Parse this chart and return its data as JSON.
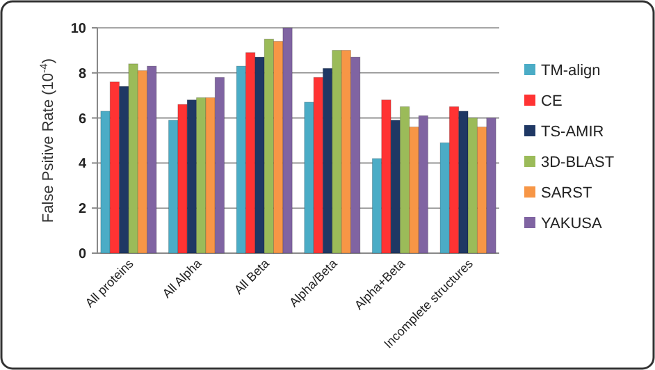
{
  "chart_data": {
    "type": "bar",
    "ylabel": "False Psitive Rate (10$^{-4}$)",
    "categories": [
      "All proteins",
      "All Alpha",
      "All Beta",
      "Alpha/Beta",
      "Alpha+Beta",
      "Incomplete structures"
    ],
    "series": [
      {
        "name": "TM-align",
        "color": "#4bacc6",
        "values": [
          6.3,
          5.9,
          8.3,
          6.7,
          4.2,
          4.9
        ]
      },
      {
        "name": "CE",
        "color": "#ff3333",
        "values": [
          7.6,
          6.6,
          8.9,
          7.8,
          6.8,
          6.5
        ]
      },
      {
        "name": "TS-AMIR",
        "color": "#1f3864",
        "values": [
          7.4,
          6.8,
          8.7,
          8.2,
          5.9,
          6.3
        ]
      },
      {
        "name": "3D-BLAST",
        "color": "#9bbb59",
        "values": [
          8.4,
          6.9,
          9.5,
          9.0,
          6.5,
          6.0
        ]
      },
      {
        "name": "SARST",
        "color": "#f79646",
        "values": [
          8.1,
          6.9,
          9.4,
          9.0,
          5.6,
          5.6
        ]
      },
      {
        "name": "YAKUSA",
        "color": "#8064a2",
        "values": [
          8.3,
          7.8,
          10.0,
          8.7,
          6.1,
          6.0
        ]
      }
    ],
    "ylim": [
      0,
      10
    ],
    "yticks": [
      0,
      2,
      4,
      6,
      8,
      10
    ],
    "grid": "y",
    "legend": "right"
  }
}
